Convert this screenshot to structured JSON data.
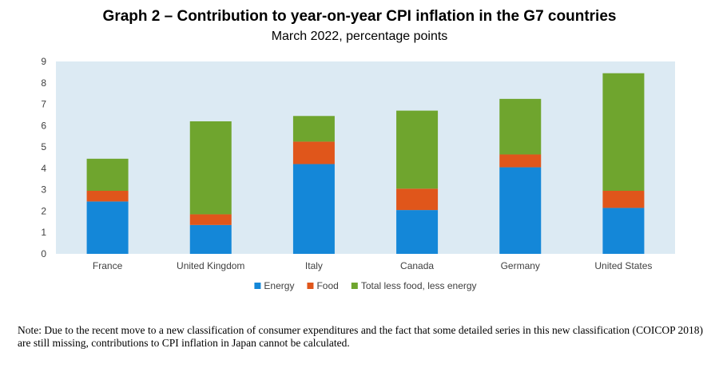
{
  "chart_data": {
    "type": "bar",
    "stacked": true,
    "title": "Graph 2 – Contribution  to year-on-year  CPI inflation  in the G7 countries",
    "subtitle": "March 2022, percentage points",
    "categories": [
      "France",
      "United Kingdom",
      "Italy",
      "Canada",
      "Germany",
      "United States"
    ],
    "series": [
      {
        "name": "Energy",
        "color": "#1487D8",
        "values": [
          2.45,
          1.35,
          4.2,
          2.05,
          4.05,
          2.15
        ]
      },
      {
        "name": "Food",
        "color": "#E0561B",
        "values": [
          0.5,
          0.5,
          1.05,
          1.0,
          0.6,
          0.8
        ]
      },
      {
        "name": "Total less food, less energy",
        "color": "#6FA52E",
        "values": [
          1.5,
          4.35,
          1.2,
          3.65,
          2.6,
          5.5
        ]
      }
    ],
    "ylim": [
      0,
      9
    ],
    "yticks": [
      "0",
      "1",
      "2",
      "3",
      "4",
      "5",
      "6",
      "7",
      "8",
      "9"
    ],
    "xlabel": "",
    "ylabel": "",
    "grid": false,
    "plot_background": "#DCEAF3",
    "legend_position": "bottom"
  },
  "note": "Note: Due to the recent move to a new classification of consumer expenditures and the fact that some detailed series in this new classification (COICOP 2018) are still missing, contributions to CPI inflation in Japan cannot be calculated."
}
